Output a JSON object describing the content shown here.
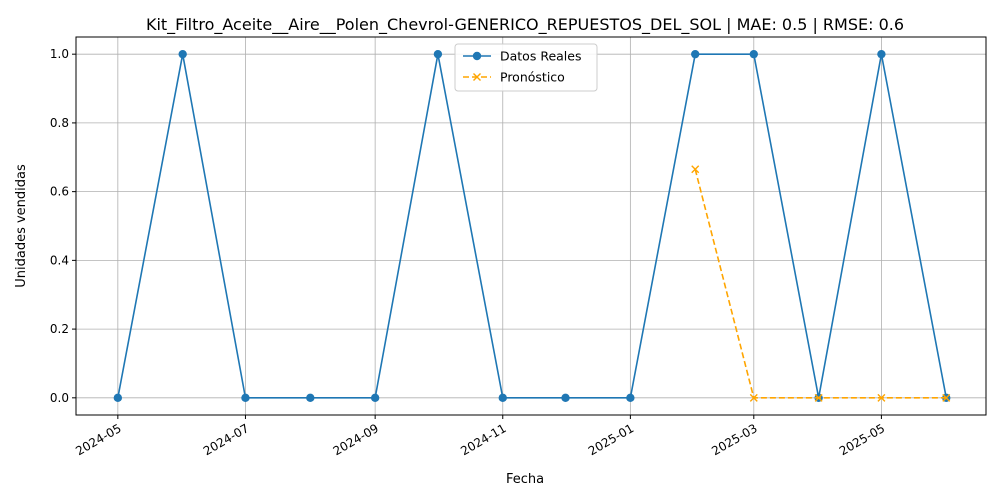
{
  "chart_data": {
    "type": "line",
    "title": "Kit_Filtro_Aceite__Aire__Polen_Chevrol-GENERICO_REPUESTOS_DEL_SOL | MAE: 0.5 | RMSE: 0.6",
    "xlabel": "Fecha",
    "ylabel": "Unidades vendidas",
    "xlim": [
      "2024-04-11",
      "2025-06-20"
    ],
    "ylim": [
      -0.05,
      1.05
    ],
    "x_ticks": [
      "2024-05",
      "2024-07",
      "2024-09",
      "2024-11",
      "2025-01",
      "2025-03",
      "2025-05"
    ],
    "y_ticks": [
      "0.0",
      "0.2",
      "0.4",
      "0.6",
      "0.8",
      "1.0"
    ],
    "grid": true,
    "legend_position": "top-center",
    "series": [
      {
        "name": "Datos Reales",
        "color": "#1f77b4",
        "style": "solid",
        "marker": "circle",
        "x": [
          "2024-05-01",
          "2024-06-01",
          "2024-07-01",
          "2024-08-01",
          "2024-09-01",
          "2024-10-01",
          "2024-11-01",
          "2024-12-01",
          "2025-01-01",
          "2025-02-01",
          "2025-03-01",
          "2025-04-01",
          "2025-05-01",
          "2025-06-01"
        ],
        "values": [
          0,
          1,
          0,
          0,
          0,
          1,
          0,
          0,
          0,
          1,
          1,
          0,
          1,
          0
        ]
      },
      {
        "name": "Pronóstico",
        "color": "#ffa500",
        "style": "dashed",
        "marker": "x",
        "x": [
          "2025-02-01",
          "2025-03-01",
          "2025-04-01",
          "2025-05-01",
          "2025-06-01"
        ],
        "values": [
          0.665,
          0,
          0,
          0,
          0
        ]
      }
    ]
  }
}
